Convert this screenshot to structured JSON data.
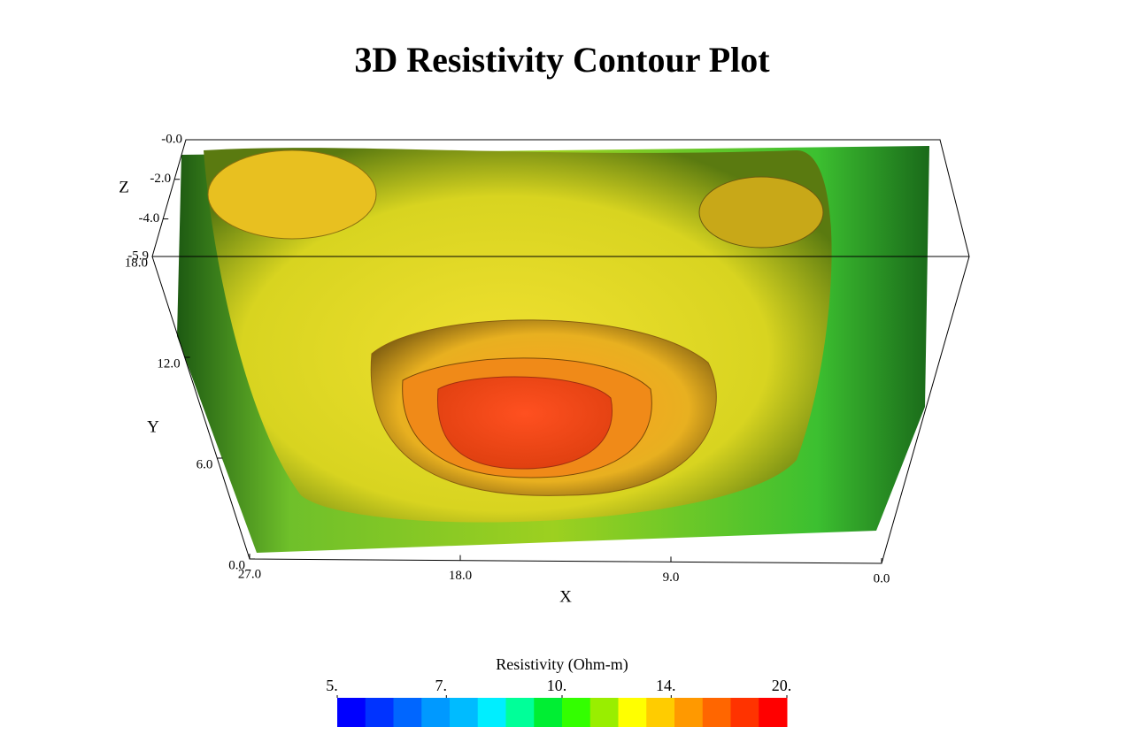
{
  "chart_data": {
    "type": "isosurface3d",
    "title": "3D Resistivity Contour Plot",
    "xlabel": "X",
    "ylabel": "Y",
    "zlabel": "Z",
    "xlim": [
      27,
      0
    ],
    "ylim": [
      0,
      18
    ],
    "zlim": [
      0,
      -5.9
    ],
    "xticks": [
      {
        "value": 27,
        "label": "27.0"
      },
      {
        "value": 18,
        "label": "18.0"
      },
      {
        "value": 9,
        "label": "9.0"
      },
      {
        "value": 0,
        "label": "0.0"
      }
    ],
    "yticks": [
      {
        "value": 0,
        "label": "0.0"
      },
      {
        "value": 6,
        "label": "6.0"
      },
      {
        "value": 12,
        "label": "12.0"
      },
      {
        "value": 18,
        "label": "18.0"
      }
    ],
    "zticks": [
      {
        "value": 0,
        "label": "-0.0"
      },
      {
        "value": -2,
        "label": "-2.0"
      },
      {
        "value": -4,
        "label": "-4.0"
      },
      {
        "value": -5.9,
        "label": "-5.9"
      }
    ],
    "colorbar": {
      "title": "Resistivity (Ohm-m)",
      "log": true,
      "lim": [
        5,
        20
      ],
      "ticks": [
        {
          "value": 5,
          "label": "5."
        },
        {
          "value": 7,
          "label": "7."
        },
        {
          "value": 10,
          "label": "10."
        },
        {
          "value": 14,
          "label": "14."
        },
        {
          "value": 20,
          "label": "20."
        }
      ],
      "colors": [
        "#0000ff",
        "#0033ff",
        "#0066ff",
        "#0099ff",
        "#00bbff",
        "#00eeff",
        "#00ff99",
        "#00ee33",
        "#33ff00",
        "#99ee00",
        "#ffff00",
        "#ffcc00",
        "#ff9900",
        "#ff6600",
        "#ff3300",
        "#ff0000"
      ]
    }
  }
}
